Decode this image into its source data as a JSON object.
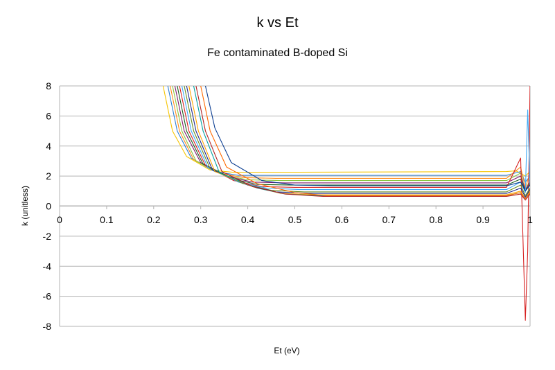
{
  "chart_data": {
    "type": "line",
    "title": "k vs Et",
    "subtitle": "Fe contaminated B-doped Si",
    "xlabel": "Et (eV)",
    "ylabel": "k (unitless)",
    "xlim": [
      0,
      1
    ],
    "ylim": [
      -8,
      8
    ],
    "xticks": [
      "0",
      "0.1",
      "0.2",
      "0.3",
      "0.4",
      "0.5",
      "0.6",
      "0.7",
      "0.8",
      "0.9",
      "1"
    ],
    "yticks": [
      "8",
      "6",
      "4",
      "2",
      "0",
      "-2",
      "-4",
      "-6",
      "-8"
    ],
    "grid": "horizontal",
    "legend": "none",
    "series": [
      {
        "color": "#f5c400",
        "values": [
          [
            0.22,
            8
          ],
          [
            0.24,
            5
          ],
          [
            0.27,
            3.3
          ],
          [
            0.32,
            2.4
          ],
          [
            0.37,
            2.25
          ],
          [
            0.45,
            2.25
          ],
          [
            0.95,
            2.3
          ],
          [
            0.97,
            2.35
          ],
          [
            0.99,
            2.0
          ],
          [
            1.0,
            2.3
          ]
        ]
      },
      {
        "color": "#2a7fd4",
        "values": [
          [
            0.23,
            8
          ],
          [
            0.25,
            5
          ],
          [
            0.28,
            3.2
          ],
          [
            0.33,
            2.3
          ],
          [
            0.38,
            2.05
          ],
          [
            0.45,
            2.05
          ],
          [
            0.95,
            2.05
          ],
          [
            0.98,
            2.3
          ],
          [
            0.99,
            1.6
          ],
          [
            1.0,
            2.0
          ]
        ]
      },
      {
        "color": "#ff8c1a",
        "values": [
          [
            0.235,
            8
          ],
          [
            0.255,
            5
          ],
          [
            0.285,
            3.1
          ],
          [
            0.34,
            2.2
          ],
          [
            0.39,
            1.9
          ],
          [
            0.46,
            1.85
          ],
          [
            0.95,
            1.85
          ],
          [
            0.98,
            2.6
          ],
          [
            0.99,
            1.2
          ],
          [
            1.0,
            2.2
          ]
        ]
      },
      {
        "color": "#88c540",
        "values": [
          [
            0.24,
            8
          ],
          [
            0.26,
            5
          ],
          [
            0.29,
            3.0
          ],
          [
            0.35,
            2.05
          ],
          [
            0.4,
            1.75
          ],
          [
            0.47,
            1.7
          ],
          [
            0.95,
            1.7
          ],
          [
            0.98,
            2.2
          ],
          [
            0.99,
            1.0
          ],
          [
            1.0,
            1.8
          ]
        ]
      },
      {
        "color": "#7d1b6a",
        "values": [
          [
            0.245,
            8
          ],
          [
            0.265,
            5
          ],
          [
            0.3,
            2.9
          ],
          [
            0.36,
            1.95
          ],
          [
            0.41,
            1.6
          ],
          [
            0.48,
            1.55
          ],
          [
            0.95,
            1.55
          ],
          [
            0.98,
            2.0
          ],
          [
            0.99,
            1.1
          ],
          [
            1.0,
            1.6
          ]
        ]
      },
      {
        "color": "#1a5e20",
        "values": [
          [
            0.25,
            8
          ],
          [
            0.27,
            5
          ],
          [
            0.305,
            2.8
          ],
          [
            0.37,
            1.8
          ],
          [
            0.42,
            1.45
          ],
          [
            0.49,
            1.4
          ],
          [
            0.95,
            1.4
          ],
          [
            0.98,
            1.8
          ],
          [
            0.99,
            1.0
          ],
          [
            1.0,
            1.5
          ]
        ]
      },
      {
        "color": "#d62020",
        "values": [
          [
            0.255,
            8
          ],
          [
            0.275,
            5
          ],
          [
            0.31,
            2.7
          ],
          [
            0.37,
            1.7
          ],
          [
            0.43,
            1.3
          ],
          [
            0.5,
            1.25
          ],
          [
            0.95,
            1.25
          ],
          [
            0.98,
            3.2
          ],
          [
            0.99,
            -7.6
          ],
          [
            0.995,
            -3
          ],
          [
            1.0,
            8
          ]
        ]
      },
      {
        "color": "#3fa9f5",
        "values": [
          [
            0.26,
            8
          ],
          [
            0.28,
            5
          ],
          [
            0.315,
            2.6
          ],
          [
            0.38,
            1.6
          ],
          [
            0.44,
            1.2
          ],
          [
            0.51,
            1.1
          ],
          [
            0.95,
            1.1
          ],
          [
            0.98,
            1.6
          ],
          [
            0.99,
            0.9
          ],
          [
            0.995,
            6.4
          ],
          [
            1.0,
            1.3
          ]
        ]
      },
      {
        "color": "#6b8e23",
        "values": [
          [
            0.265,
            8
          ],
          [
            0.285,
            5
          ],
          [
            0.32,
            2.5
          ],
          [
            0.39,
            1.5
          ],
          [
            0.45,
            1.05
          ],
          [
            0.52,
            0.95
          ],
          [
            0.95,
            0.95
          ],
          [
            0.98,
            1.4
          ],
          [
            0.99,
            0.7
          ],
          [
            1.0,
            1.2
          ]
        ]
      },
      {
        "color": "#1f2a8c",
        "values": [
          [
            0.27,
            8
          ],
          [
            0.29,
            5
          ],
          [
            0.325,
            2.4
          ],
          [
            0.4,
            1.4
          ],
          [
            0.46,
            0.95
          ],
          [
            0.53,
            0.85
          ],
          [
            0.95,
            0.85
          ],
          [
            0.98,
            1.2
          ],
          [
            0.99,
            0.6
          ],
          [
            1.0,
            1.1
          ]
        ]
      },
      {
        "color": "#ffa500",
        "values": [
          [
            0.275,
            8
          ],
          [
            0.295,
            5
          ],
          [
            0.33,
            2.3
          ],
          [
            0.41,
            1.3
          ],
          [
            0.47,
            0.85
          ],
          [
            0.54,
            0.75
          ],
          [
            0.95,
            0.75
          ],
          [
            0.98,
            1.0
          ],
          [
            0.99,
            0.5
          ],
          [
            1.0,
            1.0
          ]
        ]
      },
      {
        "color": "#00a0a0",
        "values": [
          [
            0.285,
            8
          ],
          [
            0.305,
            5
          ],
          [
            0.34,
            2.2
          ],
          [
            0.42,
            1.2
          ],
          [
            0.48,
            0.8
          ],
          [
            0.55,
            0.7
          ],
          [
            0.95,
            0.7
          ],
          [
            0.98,
            0.9
          ],
          [
            0.99,
            0.5
          ],
          [
            1.0,
            0.9
          ]
        ]
      },
      {
        "color": "#b22222",
        "values": [
          [
            0.29,
            8
          ],
          [
            0.31,
            5
          ],
          [
            0.345,
            2.3
          ],
          [
            0.41,
            1.3
          ],
          [
            0.48,
            0.8
          ],
          [
            0.56,
            0.65
          ],
          [
            0.95,
            0.65
          ],
          [
            0.98,
            0.8
          ],
          [
            0.99,
            0.4
          ],
          [
            1.0,
            0.8
          ]
        ]
      },
      {
        "color": "#ff6a00",
        "values": [
          [
            0.3,
            8
          ],
          [
            0.32,
            5
          ],
          [
            0.355,
            2.6
          ],
          [
            0.42,
            1.5
          ],
          [
            0.5,
            0.9
          ],
          [
            0.57,
            0.7
          ],
          [
            0.95,
            0.7
          ],
          [
            0.98,
            0.9
          ],
          [
            0.99,
            0.5
          ],
          [
            1.0,
            0.9
          ]
        ]
      },
      {
        "color": "#0b3d91",
        "values": [
          [
            0.31,
            8
          ],
          [
            0.33,
            5.2
          ],
          [
            0.365,
            2.9
          ],
          [
            0.43,
            1.7
          ],
          [
            0.5,
            1.4
          ],
          [
            0.58,
            1.35
          ],
          [
            0.95,
            1.35
          ],
          [
            0.98,
            1.6
          ],
          [
            0.99,
            1.0
          ],
          [
            1.0,
            1.4
          ]
        ]
      }
    ]
  }
}
